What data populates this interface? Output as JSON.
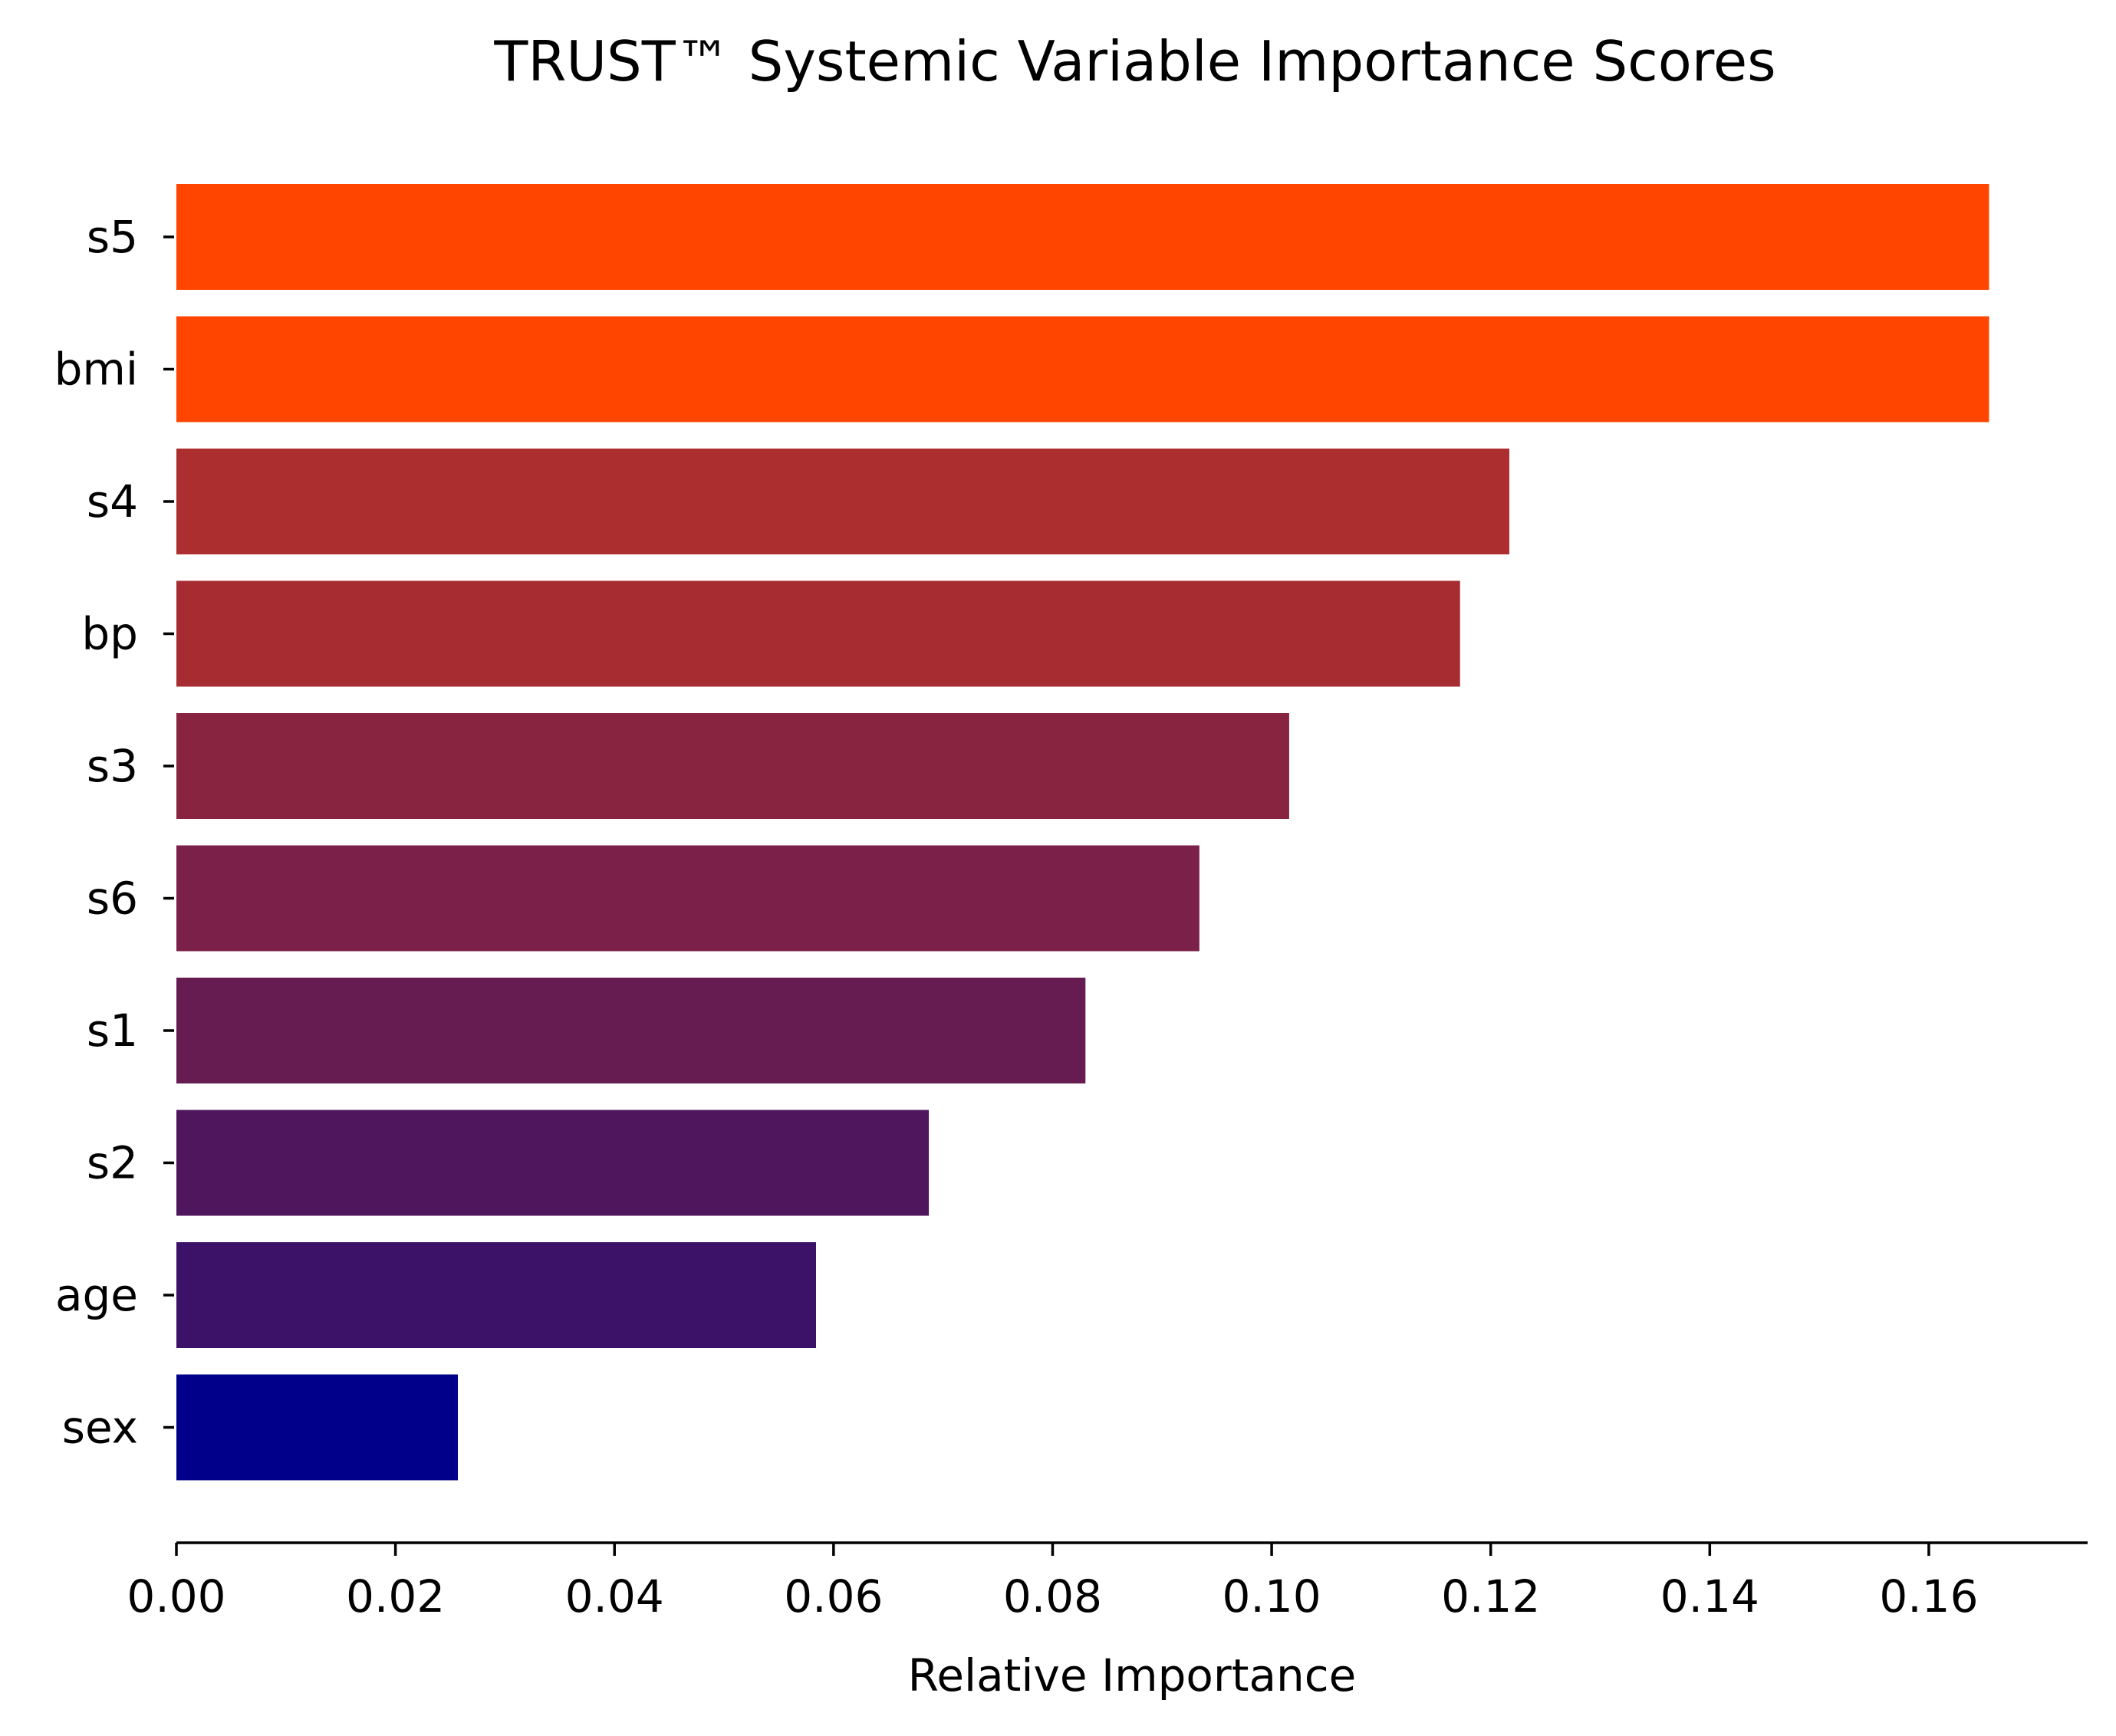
{
  "chart_data": {
    "type": "bar",
    "orientation": "horizontal",
    "title": "TRUST™ Systemic Variable Importance Scores",
    "xlabel": "Relative Importance",
    "ylabel": "",
    "categories": [
      "s5",
      "bmi",
      "s4",
      "bp",
      "s3",
      "s6",
      "s1",
      "s2",
      "age",
      "sex"
    ],
    "values": [
      0.1655,
      0.1655,
      0.1217,
      0.1172,
      0.1016,
      0.0934,
      0.083,
      0.0687,
      0.0584,
      0.0257
    ],
    "colors": [
      "#ff4500",
      "#ff4500",
      "#ad2e2f",
      "#a62c32",
      "#88243f",
      "#7a2049",
      "#661c51",
      "#4f165e",
      "#3c1168",
      "#00008b"
    ],
    "xlim": [
      0,
      0.1745
    ],
    "xticks": [
      0.0,
      0.02,
      0.04,
      0.06,
      0.08,
      0.1,
      0.12,
      0.14,
      0.16
    ],
    "xtick_labels": [
      "0.00",
      "0.02",
      "0.04",
      "0.06",
      "0.08",
      "0.10",
      "0.12",
      "0.14",
      "0.16"
    ],
    "grid": false,
    "legend": "none"
  }
}
